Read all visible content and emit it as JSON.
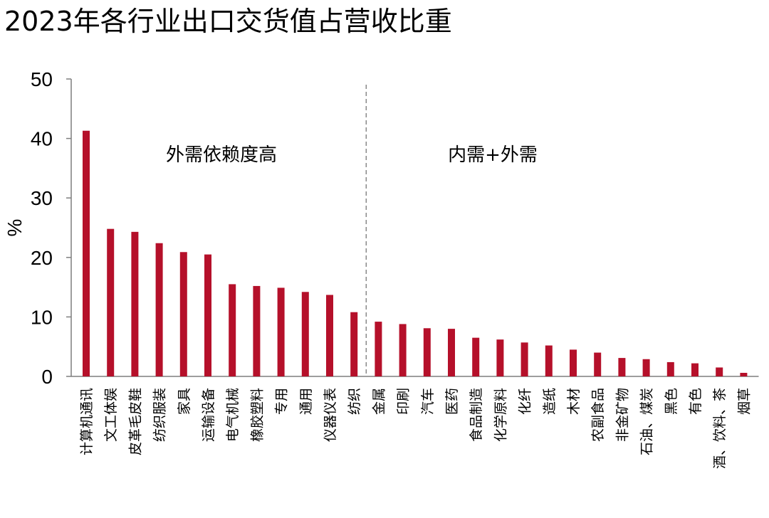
{
  "chart_data": {
    "type": "bar",
    "title": "2023年各行业出口交货值占营收比重",
    "ylabel": "%",
    "xlabel": "",
    "ylim": [
      0,
      50
    ],
    "yticks": [
      0,
      10,
      20,
      30,
      40,
      50
    ],
    "grid": false,
    "legend": "none",
    "bar_color": "#b5102a",
    "categories": [
      "计算机通讯",
      "文工体娱",
      "皮革毛皮鞋",
      "纺织服装",
      "家具",
      "运输设备",
      "电气机械",
      "橡胶塑料",
      "专用",
      "通用",
      "仪器仪表",
      "纺织",
      "金属",
      "印刷",
      "汽车",
      "医药",
      "食品制造",
      "化学原料",
      "化纤",
      "造纸",
      "木材",
      "农副食品",
      "非金矿物",
      "石油、煤炭",
      "黑色",
      "有色",
      "酒、饮料、茶",
      "烟草"
    ],
    "values": [
      41.3,
      24.8,
      24.3,
      22.4,
      20.9,
      20.5,
      15.5,
      15.2,
      14.9,
      14.2,
      13.7,
      10.8,
      9.2,
      8.8,
      8.1,
      8.0,
      6.5,
      6.2,
      5.7,
      5.2,
      4.5,
      4.0,
      3.1,
      2.9,
      2.4,
      2.2,
      1.5,
      0.6
    ],
    "annotations": [
      {
        "text": "外需依赖度高"
      },
      {
        "text": "内需+外需"
      }
    ],
    "divider_after_index": 11
  }
}
